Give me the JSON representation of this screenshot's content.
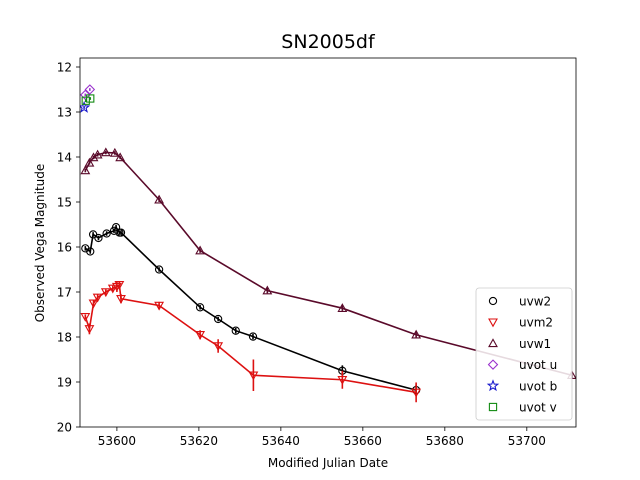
{
  "chart_data": {
    "type": "scatter",
    "title": "SN2005df",
    "xlabel": "Modified Julian Date",
    "ylabel": "Observed Vega Magnitude",
    "xlim": [
      53591,
      53712
    ],
    "ylim": [
      20,
      11.8
    ],
    "y_inverted": true,
    "grid": false,
    "legend_position": "lower-right",
    "xticks": [
      53600,
      53620,
      53640,
      53660,
      53680,
      53700
    ],
    "yticks": [
      12,
      13,
      14,
      15,
      16,
      17,
      18,
      19,
      20
    ],
    "series": [
      {
        "name": "uvw2",
        "color": "#000000",
        "marker": "circle",
        "connected": true,
        "points": [
          {
            "x": 53592.3,
            "y": 16.03,
            "err": 0.05
          },
          {
            "x": 53593.5,
            "y": 16.1,
            "err": 0.05
          },
          {
            "x": 53594.2,
            "y": 15.72,
            "err": 0.05
          },
          {
            "x": 53595.5,
            "y": 15.8,
            "err": 0.05
          },
          {
            "x": 53597.5,
            "y": 15.7,
            "err": 0.05
          },
          {
            "x": 53599.3,
            "y": 15.64,
            "err": 0.05
          },
          {
            "x": 53599.8,
            "y": 15.56,
            "err": 0.05
          },
          {
            "x": 53600.6,
            "y": 15.68,
            "err": 0.05
          },
          {
            "x": 53601.0,
            "y": 15.68,
            "err": 0.05
          },
          {
            "x": 53610.3,
            "y": 16.5,
            "err": 0.05
          },
          {
            "x": 53620.3,
            "y": 17.34,
            "err": 0.05
          },
          {
            "x": 53624.7,
            "y": 17.6,
            "err": 0.05
          },
          {
            "x": 53629.0,
            "y": 17.86,
            "err": 0.06
          },
          {
            "x": 53633.2,
            "y": 17.99,
            "err": 0.06
          },
          {
            "x": 53655.0,
            "y": 18.75,
            "err": 0.12
          },
          {
            "x": 53673.0,
            "y": 19.18,
            "err": 0.12
          }
        ]
      },
      {
        "name": "uvm2",
        "color": "#dd1111",
        "marker": "triangle-down",
        "connected": true,
        "points": [
          {
            "x": 53592.3,
            "y": 17.55,
            "err": 0.05
          },
          {
            "x": 53593.3,
            "y": 17.82,
            "err": 0.12
          },
          {
            "x": 53594.3,
            "y": 17.25,
            "err": 0.08
          },
          {
            "x": 53595.3,
            "y": 17.12,
            "err": 0.07
          },
          {
            "x": 53597.3,
            "y": 17.0,
            "err": 0.06
          },
          {
            "x": 53599.0,
            "y": 16.92,
            "err": 0.06
          },
          {
            "x": 53600.0,
            "y": 16.88,
            "err": 0.12
          },
          {
            "x": 53600.6,
            "y": 16.84,
            "err": 0.08
          },
          {
            "x": 53601.0,
            "y": 17.15,
            "err": 0.1
          },
          {
            "x": 53610.3,
            "y": 17.3,
            "err": 0.08
          },
          {
            "x": 53620.3,
            "y": 17.95,
            "err": 0.1
          },
          {
            "x": 53624.7,
            "y": 18.2,
            "err": 0.15
          },
          {
            "x": 53633.3,
            "y": 18.85,
            "err": 0.35
          },
          {
            "x": 53655.0,
            "y": 18.95,
            "err": 0.2
          },
          {
            "x": 53673.0,
            "y": 19.23,
            "err": 0.22
          }
        ]
      },
      {
        "name": "uvw1",
        "color": "#5a0a2a",
        "marker": "triangle-up",
        "connected": true,
        "points": [
          {
            "x": 53592.3,
            "y": 14.3,
            "err": 0.04
          },
          {
            "x": 53593.3,
            "y": 14.13,
            "err": 0.04
          },
          {
            "x": 53594.3,
            "y": 14.01,
            "err": 0.04
          },
          {
            "x": 53595.3,
            "y": 13.95,
            "err": 0.04
          },
          {
            "x": 53597.3,
            "y": 13.9,
            "err": 0.04
          },
          {
            "x": 53599.5,
            "y": 13.91,
            "err": 0.04
          },
          {
            "x": 53600.8,
            "y": 14.01,
            "err": 0.04
          },
          {
            "x": 53610.3,
            "y": 14.95,
            "err": 0.05
          },
          {
            "x": 53620.3,
            "y": 16.08,
            "err": 0.05
          },
          {
            "x": 53636.7,
            "y": 16.97,
            "err": 0.06
          },
          {
            "x": 53655.0,
            "y": 17.36,
            "err": 0.06
          },
          {
            "x": 53673.0,
            "y": 17.95,
            "err": 0.06
          },
          {
            "x": 53711.0,
            "y": 18.85,
            "err": 0.06
          }
        ]
      },
      {
        "name": "uvot u",
        "color": "#9a32cd",
        "marker": "diamond",
        "connected": false,
        "points": [
          {
            "x": 53592.3,
            "y": 12.62,
            "err": 0.03
          },
          {
            "x": 53593.4,
            "y": 12.5,
            "err": 0.03
          }
        ]
      },
      {
        "name": "uvot b",
        "color": "#1a1acd",
        "marker": "star",
        "connected": false,
        "points": [
          {
            "x": 53592.0,
            "y": 12.9,
            "err": 0.03
          }
        ]
      },
      {
        "name": "uvot v",
        "color": "#138a13",
        "marker": "square",
        "connected": false,
        "points": [
          {
            "x": 53592.4,
            "y": 12.75,
            "err": 0.03
          },
          {
            "x": 53593.5,
            "y": 12.7,
            "err": 0.03
          }
        ]
      }
    ]
  }
}
